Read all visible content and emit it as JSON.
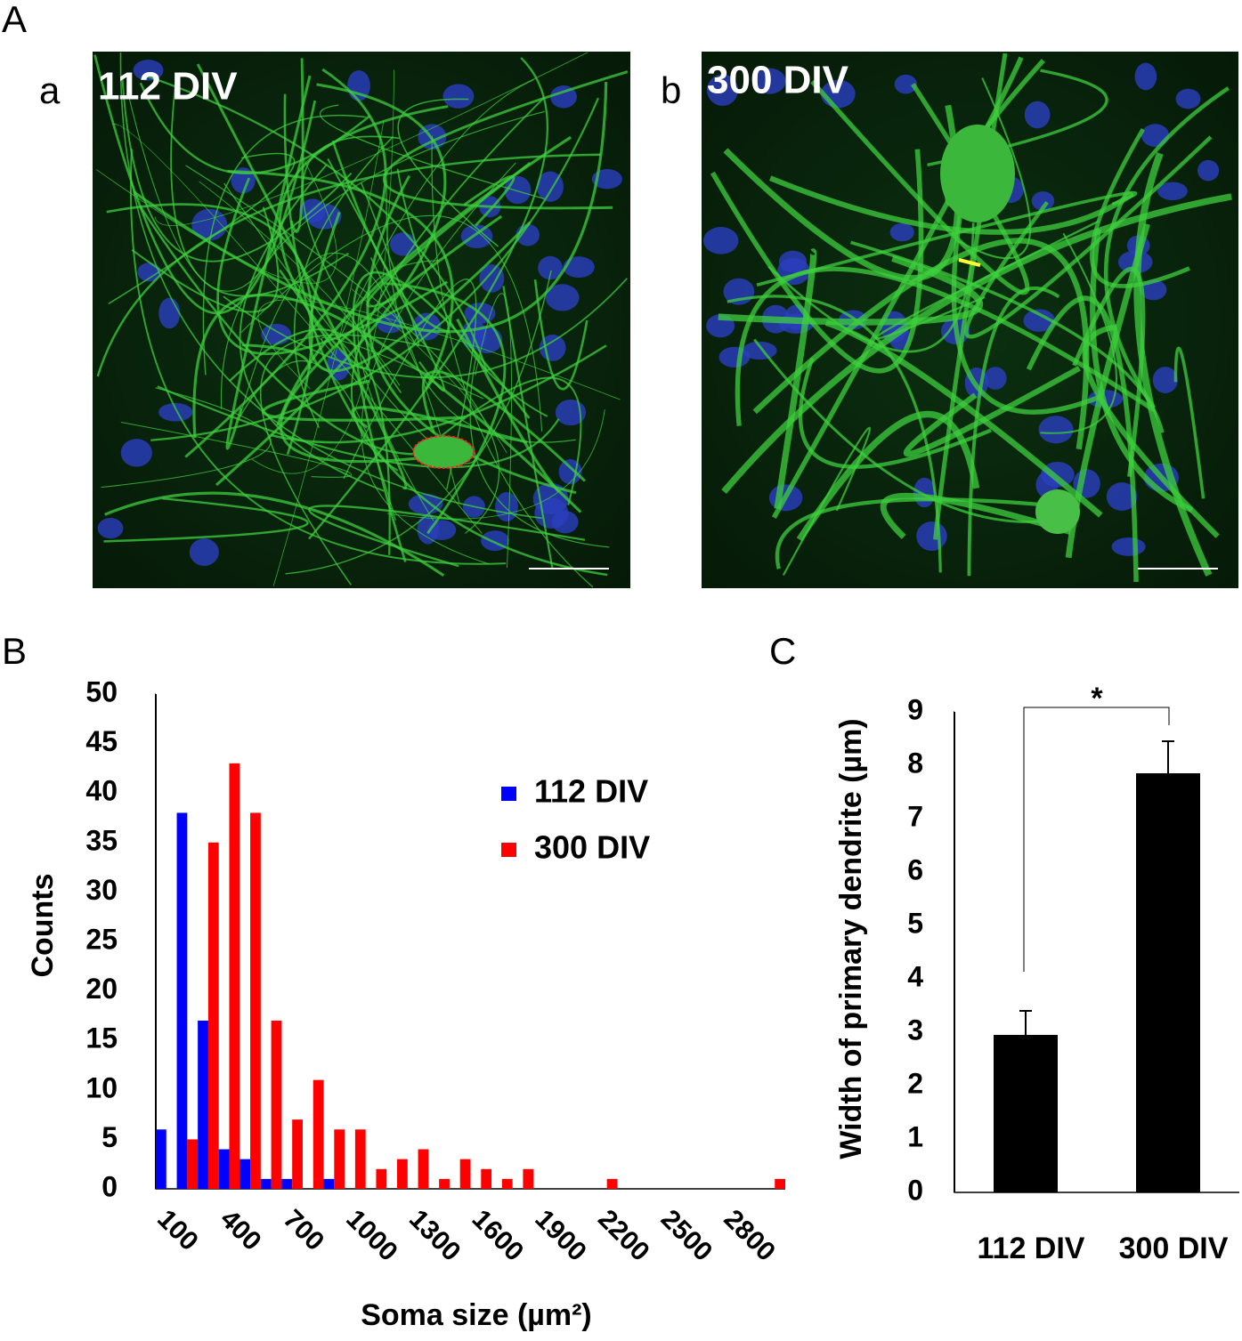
{
  "panel_labels": [
    "A",
    "B",
    "C"
  ],
  "images": [
    {
      "panel": "a",
      "label": "112 DIV"
    },
    {
      "panel": "b",
      "label": "300 DIV"
    }
  ],
  "chart_data": [
    {
      "type": "bar",
      "x_label": "Soma size (µm²)",
      "y_label": "Counts",
      "categories": [
        100,
        null,
        null,
        400,
        null,
        null,
        700,
        null,
        null,
        1000,
        null,
        null,
        1300,
        null,
        null,
        1600,
        null,
        null,
        1900,
        null,
        null,
        2200,
        null,
        null,
        2500,
        null,
        null,
        2800,
        null,
        null
      ],
      "series": [
        {
          "name": "112 DIV",
          "color": "#0000ff",
          "values": [
            6,
            38,
            17,
            4,
            3,
            1,
            1,
            0,
            1,
            0,
            0,
            0,
            0,
            0,
            0,
            0,
            0,
            0,
            0,
            0,
            0,
            0,
            0,
            0,
            0,
            0,
            0,
            0,
            0,
            0
          ]
        },
        {
          "name": "300 DIV",
          "color": "#ff0000",
          "values": [
            0,
            5,
            35,
            43,
            38,
            17,
            7,
            11,
            6,
            6,
            2,
            3,
            4,
            1,
            3,
            2,
            1,
            2,
            0,
            0,
            0,
            1,
            0,
            0,
            0,
            0,
            0,
            0,
            0,
            1
          ]
        }
      ],
      "ylim": [
        0,
        50
      ],
      "yticks": [
        0,
        5,
        10,
        15,
        20,
        25,
        30,
        35,
        40,
        45,
        50
      ],
      "legend": "upper right",
      "grid": false
    },
    {
      "type": "bar",
      "y_label": "Width of primary dendrite (µm)",
      "categories": [
        "112 DIV",
        "300 DIV"
      ],
      "values": [
        2.95,
        7.85
      ],
      "errors": [
        0.45,
        0.6
      ],
      "color": "#000000",
      "ylim": [
        0,
        9
      ],
      "yticks": [
        0,
        1,
        2,
        3,
        4,
        5,
        6,
        7,
        8,
        9
      ],
      "annotation": "*",
      "grid": false
    }
  ]
}
